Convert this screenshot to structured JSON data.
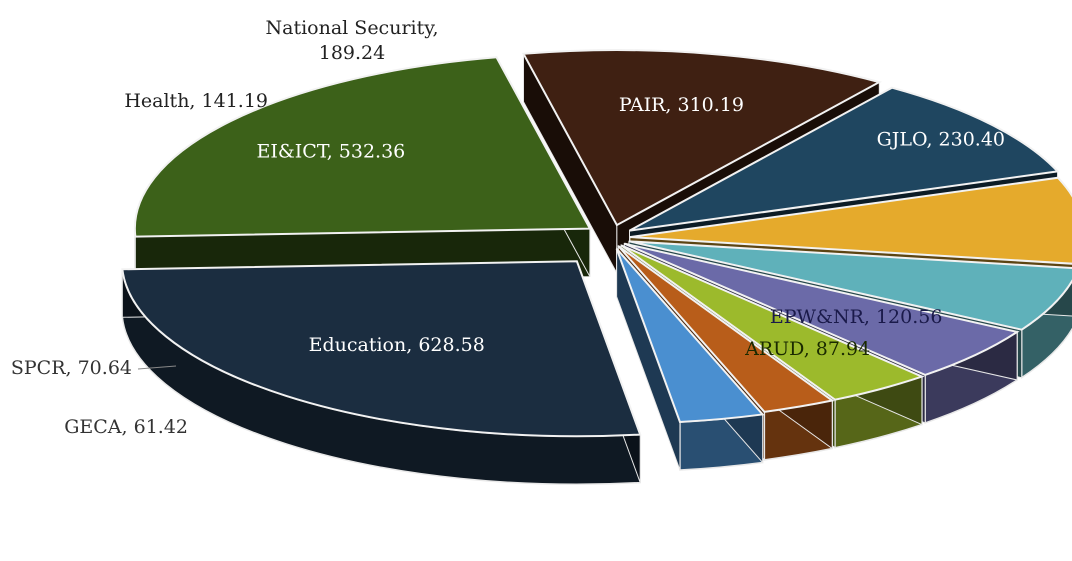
{
  "chart_data": {
    "type": "pie",
    "style": "3d-exploded",
    "title": "",
    "slices": [
      {
        "label": "Education",
        "value": 628.58,
        "display": "Education, 628.58",
        "color": "#1b2d40",
        "label_color": "#ffffff"
      },
      {
        "label": "EI&ICT",
        "value": 532.36,
        "display": "EI&ICT, 532.36",
        "color": "#3c6119",
        "label_color": "#ffffff"
      },
      {
        "label": "PAIR",
        "value": 310.19,
        "display": "PAIR, 310.19",
        "color": "#3f2012",
        "label_color": "#ffffff"
      },
      {
        "label": "GJLO",
        "value": 230.4,
        "display": "GJLO, 230.40",
        "color": "#1f4660",
        "label_color": "#ffffff"
      },
      {
        "label": "National Security",
        "value": 189.24,
        "display": "National Security,",
        "display2": "189.24",
        "color": "#e5aa2c",
        "label_color": "#222222"
      },
      {
        "label": "Health",
        "value": 141.19,
        "display": "Health, 141.19",
        "color": "#5fb1ba",
        "label_color": "#222222"
      },
      {
        "label": "EPW&NR",
        "value": 120.56,
        "display": "EPW&NR, 120.56",
        "color": "#6b6aa8",
        "label_color": "#1a1a4a"
      },
      {
        "label": "ARUD",
        "value": 87.94,
        "display": "ARUD, 87.94",
        "color": "#9cba2c",
        "label_color": "#1a2a00"
      },
      {
        "label": "GECA",
        "value": 61.42,
        "display": "GECA, 61.42",
        "color": "#b85d1a",
        "label_color": "#333333"
      },
      {
        "label": "SPCR",
        "value": 70.64,
        "display": "SPCR, 70.64",
        "color": "#4a8fd0",
        "label_color": "#333333"
      }
    ]
  }
}
